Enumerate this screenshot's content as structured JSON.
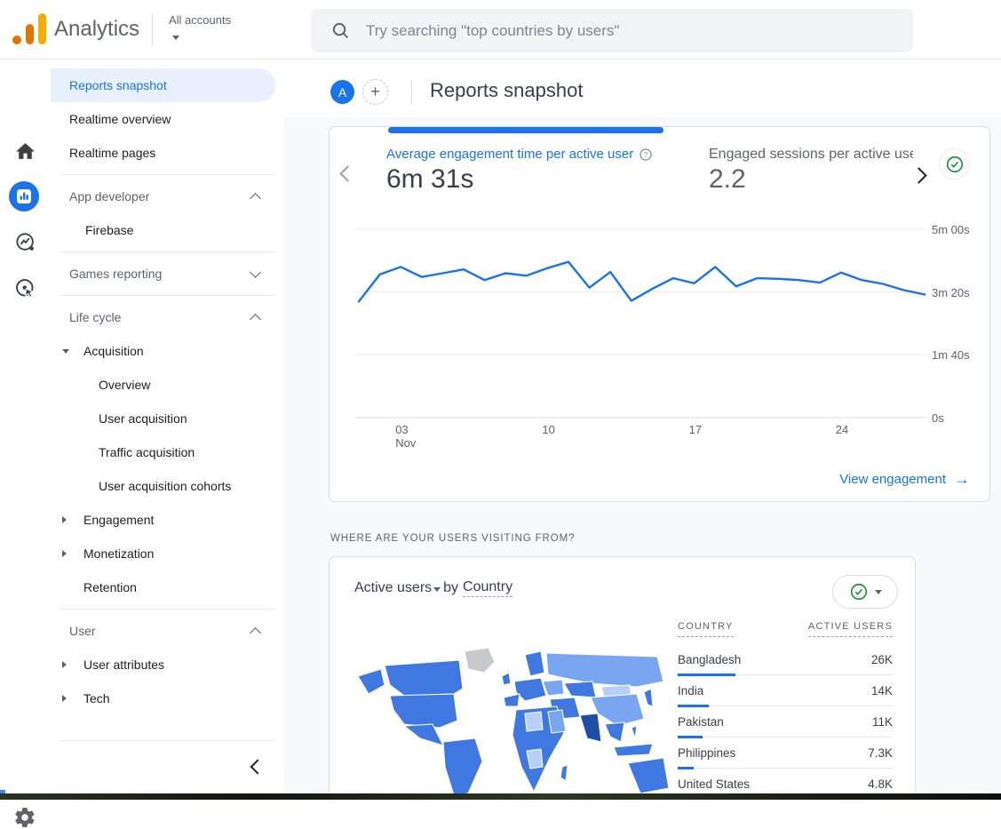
{
  "colors": {
    "accent_blue": "#1a73e8",
    "selected_pill_bg": "#e8f0fe",
    "green_check": "#1e8e3e",
    "logo_orange": "#e37400",
    "logo_yellow": "#f9ab00",
    "map": {
      "mid": "#3e78e0",
      "light": "#7aa5f0",
      "xlight": "#b8cffa",
      "dark": "#1d4fa6",
      "nodata": "#c7cacc"
    }
  },
  "topbar": {
    "product_name": "Analytics",
    "account_selector_label": "All accounts",
    "search_placeholder": "Try searching \"top countries by users\""
  },
  "nav_rail": {
    "icons": [
      "home",
      "reports",
      "explore",
      "advertising"
    ],
    "active_icon": "reports",
    "settings_icon": "settings"
  },
  "sidebar": {
    "items": [
      {
        "type": "item",
        "label": "Reports snapshot",
        "selected": true
      },
      {
        "type": "item",
        "label": "Realtime overview"
      },
      {
        "type": "item",
        "label": "Realtime pages"
      },
      {
        "type": "divider"
      },
      {
        "type": "section",
        "label": "App developer",
        "chevron": "up"
      },
      {
        "type": "sub",
        "label": "Firebase"
      },
      {
        "type": "divider"
      },
      {
        "type": "section",
        "label": "Games reporting",
        "chevron": "down"
      },
      {
        "type": "divider"
      },
      {
        "type": "section",
        "label": "Life cycle",
        "chevron": "up"
      },
      {
        "type": "expandable",
        "label": "Acquisition",
        "state": "expanded"
      },
      {
        "type": "sub2",
        "label": "Overview"
      },
      {
        "type": "sub2",
        "label": "User acquisition"
      },
      {
        "type": "sub2",
        "label": "Traffic acquisition"
      },
      {
        "type": "sub2",
        "label": "User acquisition cohorts"
      },
      {
        "type": "expandable",
        "label": "Engagement",
        "state": "collapsed"
      },
      {
        "type": "expandable",
        "label": "Monetization",
        "state": "collapsed"
      },
      {
        "type": "item2",
        "label": "Retention"
      },
      {
        "type": "divider"
      },
      {
        "type": "section",
        "label": "User",
        "chevron": "up"
      },
      {
        "type": "expandable",
        "label": "User attributes",
        "state": "collapsed"
      },
      {
        "type": "expandable",
        "label": "Tech",
        "state": "collapsed"
      },
      {
        "type": "divider",
        "tall": true
      }
    ]
  },
  "content_header": {
    "avatar_letter": "A",
    "title": "Reports snapshot"
  },
  "overview_card": {
    "primary_metric": {
      "label": "Average engagement time per active user",
      "value": "6m 31s"
    },
    "secondary_metric": {
      "label": "Engaged sessions per active user",
      "value": "2.2"
    },
    "footer_link": {
      "label": "View engagement",
      "arrow": "→"
    }
  },
  "chart_data": {
    "type": "line",
    "title": "Average engagement time per active user (daily)",
    "x_unit": "day of November",
    "x": [
      1,
      2,
      3,
      4,
      5,
      6,
      7,
      8,
      9,
      10,
      11,
      12,
      13,
      14,
      15,
      16,
      17,
      18,
      19,
      20,
      21,
      22,
      23,
      24,
      25,
      26,
      27,
      28
    ],
    "values_seconds": [
      185,
      228,
      240,
      224,
      230,
      236,
      219,
      230,
      226,
      238,
      248,
      207,
      232,
      186,
      205,
      222,
      214,
      240,
      209,
      222,
      221,
      219,
      215,
      231,
      219,
      213,
      203,
      196
    ],
    "ylim": [
      0,
      300
    ],
    "y_ticks": [
      {
        "label": "5m 00s",
        "seconds": 300
      },
      {
        "label": "3m 20s",
        "seconds": 200
      },
      {
        "label": "1m 40s",
        "seconds": 100
      },
      {
        "label": "0s",
        "seconds": 0
      }
    ],
    "x_ticks": [
      {
        "label": "03",
        "sublabel": "Nov",
        "day": 3
      },
      {
        "label": "10",
        "day": 10
      },
      {
        "label": "17",
        "day": 17
      },
      {
        "label": "24",
        "day": 24
      }
    ],
    "grid": "horizontal",
    "legend": "none",
    "line_color": "#1a73e8"
  },
  "geo_section": {
    "heading": "WHERE ARE YOUR USERS VISITING FROM?",
    "card_title": {
      "metric": "Active users",
      "connector": "by",
      "dimension": "Country"
    },
    "table": {
      "columns": [
        "COUNTRY",
        "ACTIVE USERS"
      ],
      "rows": [
        {
          "country": "Bangladesh",
          "display": "26K",
          "value": 26000
        },
        {
          "country": "India",
          "display": "14K",
          "value": 14000
        },
        {
          "country": "Pakistan",
          "display": "11K",
          "value": 11000
        },
        {
          "country": "Philippines",
          "display": "7.3K",
          "value": 7300
        },
        {
          "country": "United States",
          "display": "4.8K",
          "value": 4800
        }
      ],
      "max_value": 26000
    }
  }
}
